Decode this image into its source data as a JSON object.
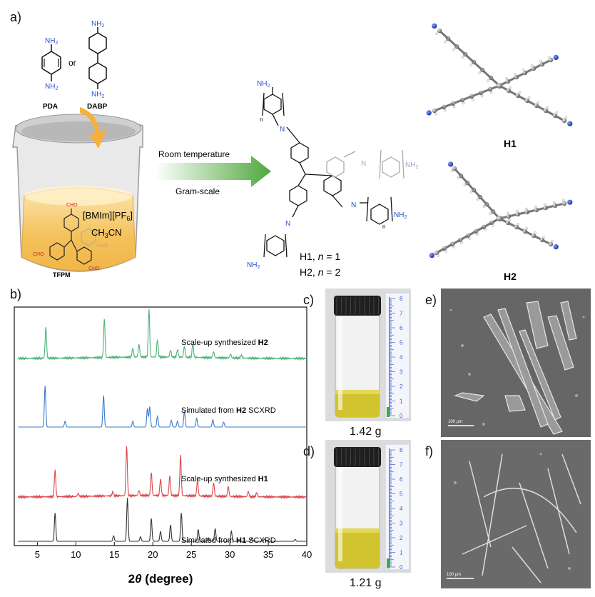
{
  "panels": {
    "a": "a)",
    "b": "b)",
    "c": "c)",
    "d": "d)",
    "e": "e)",
    "f": "f)"
  },
  "scheme": {
    "amine_group": "NH",
    "amine_sub": "2",
    "pda_label": "PDA",
    "or_label": "or",
    "dabp_label": "DABP",
    "aldehyde_group": "CHO",
    "tfpm_label": "TFPM",
    "ionic_liquid": "[BMIm][PF",
    "ionic_liquid_sub": "6",
    "ionic_liquid_end": "]",
    "solvent_a": "CH",
    "solvent_sub": "3",
    "solvent_b": "CN",
    "arrow_top": "Room temperature",
    "arrow_bottom": "Gram-scale",
    "imine_n": "N",
    "repeat_n": "n",
    "h1_caption": "H1, ",
    "h1_eq": " = 1",
    "h2_caption": "H2, ",
    "h2_eq": " = 2",
    "h1_struct_label": "H1",
    "h2_struct_label": "H2"
  },
  "colors": {
    "amine": "#2b4fc9",
    "aldehyde": "#d62020",
    "green_pattern": "#4cb27a",
    "blue_pattern": "#3a7cc9",
    "red_pattern": "#d9474a",
    "black_pattern": "#333333",
    "arrow_green": "#5fae4a"
  },
  "chart_data": {
    "type": "line",
    "xlabel_italic": "θ",
    "xlabel_prefix": "2",
    "xlabel_suffix": " (degree)",
    "xlim": [
      2,
      40
    ],
    "xticks": [
      "5",
      "10",
      "15",
      "20",
      "25",
      "30",
      "35",
      "40"
    ],
    "series": [
      {
        "name": "Scale-up synthesized ",
        "bold": "H2",
        "peaks": [
          [
            6.1,
            0.62
          ],
          [
            13.7,
            0.78
          ],
          [
            17.4,
            0.18
          ],
          [
            18.2,
            0.26
          ],
          [
            19.5,
            0.95
          ],
          [
            20.6,
            0.35
          ],
          [
            22.3,
            0.14
          ],
          [
            23.2,
            0.15
          ],
          [
            24.1,
            0.22
          ],
          [
            25.2,
            0.28
          ],
          [
            27.9,
            0.12
          ],
          [
            30.1,
            0.08
          ],
          [
            31.5,
            0.06
          ]
        ]
      },
      {
        "name": "Simulated from ",
        "bold": "H2",
        "suffix": " SCXRD",
        "peaks": [
          [
            6.0,
            0.85
          ],
          [
            8.6,
            0.12
          ],
          [
            13.6,
            0.65
          ],
          [
            17.4,
            0.12
          ],
          [
            19.3,
            0.38
          ],
          [
            19.6,
            0.42
          ],
          [
            20.6,
            0.22
          ],
          [
            22.4,
            0.14
          ],
          [
            23.2,
            0.12
          ],
          [
            24.1,
            0.32
          ],
          [
            25.7,
            0.18
          ],
          [
            27.8,
            0.15
          ],
          [
            29.2,
            0.1
          ]
        ]
      },
      {
        "name": "Scale-up synthesized ",
        "bold": "H1",
        "peaks": [
          [
            7.3,
            0.52
          ],
          [
            10.3,
            0.06
          ],
          [
            14.8,
            0.08
          ],
          [
            16.6,
            0.95
          ],
          [
            18.2,
            0.1
          ],
          [
            19.8,
            0.45
          ],
          [
            21.0,
            0.32
          ],
          [
            22.2,
            0.38
          ],
          [
            23.6,
            0.78
          ],
          [
            25.8,
            0.3
          ],
          [
            27.9,
            0.26
          ],
          [
            29.8,
            0.2
          ],
          [
            32.4,
            0.1
          ],
          [
            33.5,
            0.08
          ]
        ]
      },
      {
        "name": "Simulated from ",
        "bold": "H1",
        "suffix": " SCXRD",
        "peaks": [
          [
            7.3,
            0.62
          ],
          [
            14.9,
            0.12
          ],
          [
            16.7,
            0.95
          ],
          [
            18.4,
            0.1
          ],
          [
            19.8,
            0.5
          ],
          [
            21.0,
            0.22
          ],
          [
            22.3,
            0.36
          ],
          [
            23.7,
            0.62
          ],
          [
            25.9,
            0.26
          ],
          [
            27.2,
            0.08
          ],
          [
            28.1,
            0.28
          ],
          [
            30.2,
            0.22
          ],
          [
            32.9,
            0.08
          ],
          [
            34.5,
            0.05
          ],
          [
            38.5,
            0.04
          ]
        ]
      }
    ]
  },
  "photos": {
    "c_mass": "1.42 g",
    "d_mass": "1.21 g",
    "ruler_numbers": [
      "8",
      "7",
      "6",
      "5",
      "4",
      "3",
      "2",
      "1",
      "0"
    ]
  },
  "sem": {
    "e_scale": "100 μm",
    "f_scale": "100 μm"
  }
}
